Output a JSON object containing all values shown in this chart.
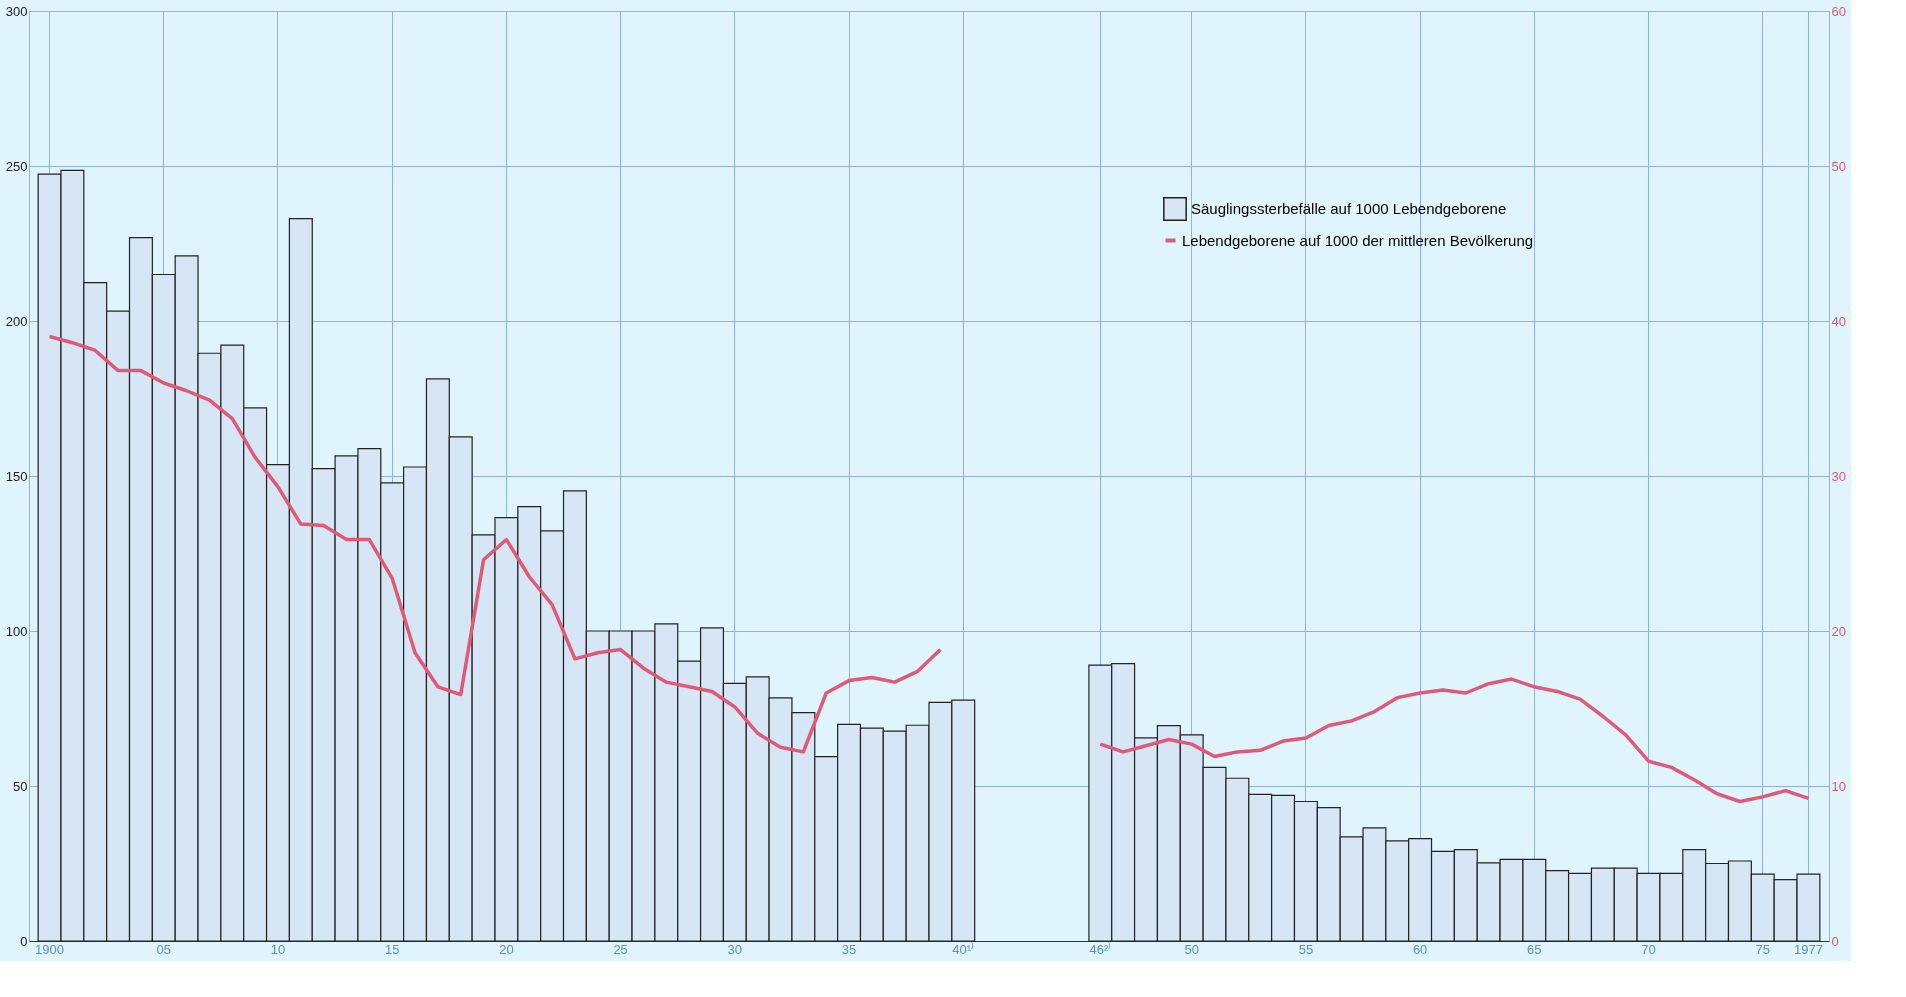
{
  "chart_data": {
    "type": "bar",
    "categories": [
      "1900",
      null,
      null,
      null,
      null,
      "05",
      null,
      null,
      null,
      null,
      "10",
      null,
      null,
      null,
      null,
      "15",
      null,
      null,
      null,
      null,
      "20",
      null,
      null,
      null,
      null,
      "25",
      null,
      null,
      null,
      null,
      "30",
      null,
      null,
      null,
      null,
      "35",
      null,
      null,
      null,
      null,
      "40¹⁾",
      null,
      null,
      null,
      null,
      null,
      "46²⁾",
      null,
      null,
      null,
      "50",
      null,
      null,
      null,
      null,
      "55",
      null,
      null,
      null,
      null,
      "60",
      null,
      null,
      null,
      null,
      "65",
      null,
      null,
      null,
      null,
      "70",
      null,
      null,
      null,
      null,
      "75",
      null,
      "1977"
    ],
    "series": [
      {
        "name": "Säuglingssterbefälle auf 1000 Lebendgeborene",
        "color": "#d6e6f5",
        "values": [
          247.4,
          248.6,
          212.4,
          203.2,
          226.9,
          215,
          221,
          189.6,
          192.2,
          172,
          153.7,
          233,
          152.4,
          156.5,
          158.8,
          147.8,
          152.9,
          181.3,
          162.6,
          131,
          136.6,
          140.1,
          132.3,
          145.2,
          100,
          100,
          100,
          102.3,
          90.3,
          101,
          83.1,
          85.2,
          78.4,
          73.7,
          59.5,
          69.9,
          68.7,
          67.7,
          69.6,
          77,
          77.7,
          null,
          null,
          null,
          null,
          null,
          89,
          89.5,
          65.5,
          69.5,
          66.5,
          56,
          52.5,
          47.3,
          47,
          45,
          43,
          33.6,
          36.5,
          32.3,
          33,
          28.9,
          29.5,
          25.2,
          26.3,
          26.3,
          22.7,
          21.8,
          23.5,
          23.5,
          21.8,
          21.8,
          29.5,
          25,
          25.8,
          21.6,
          19.8,
          21.6
        ]
      },
      {
        "name": "Lebendgeborene auf 1000 der mittleren Bevölkerung",
        "type": "line",
        "axis": "y2",
        "color": "#e05a78",
        "values": [
          39.0,
          38.6,
          38.1,
          36.8,
          36.8,
          36.0,
          35.5,
          34.9,
          33.7,
          31.2,
          29.3,
          26.9,
          26.8,
          25.9,
          25.9,
          23.4,
          18.6,
          16.4,
          15.9,
          24.6,
          25.9,
          23.5,
          21.7,
          18.2,
          18.6,
          18.8,
          17.6,
          16.7,
          16.4,
          16.1,
          15.1,
          13.4,
          12.5,
          12.2,
          16.0,
          16.8,
          17.0,
          16.7,
          17.4,
          18.8,
          null,
          null,
          null,
          null,
          null,
          null,
          12.7,
          12.2,
          12.6,
          13.0,
          12.7,
          11.9,
          12.2,
          12.3,
          12.9,
          13.1,
          13.9,
          14.2,
          14.8,
          15.7,
          16.0,
          16.2,
          16.0,
          16.6,
          16.9,
          16.4,
          16.1,
          15.6,
          14.5,
          13.3,
          11.6,
          11.2,
          10.4,
          9.5,
          9.0,
          9.3,
          9.7,
          9.2
        ]
      }
    ],
    "ylim": [
      0,
      300
    ],
    "yticks": [
      0,
      50,
      100,
      150,
      200,
      250,
      300
    ],
    "y2lim": [
      0,
      60
    ],
    "y2ticks": [
      0,
      10,
      20,
      30,
      40,
      50,
      60
    ],
    "grid": true,
    "legend": "top right",
    "line_style": "solid",
    "marker": "none"
  }
}
